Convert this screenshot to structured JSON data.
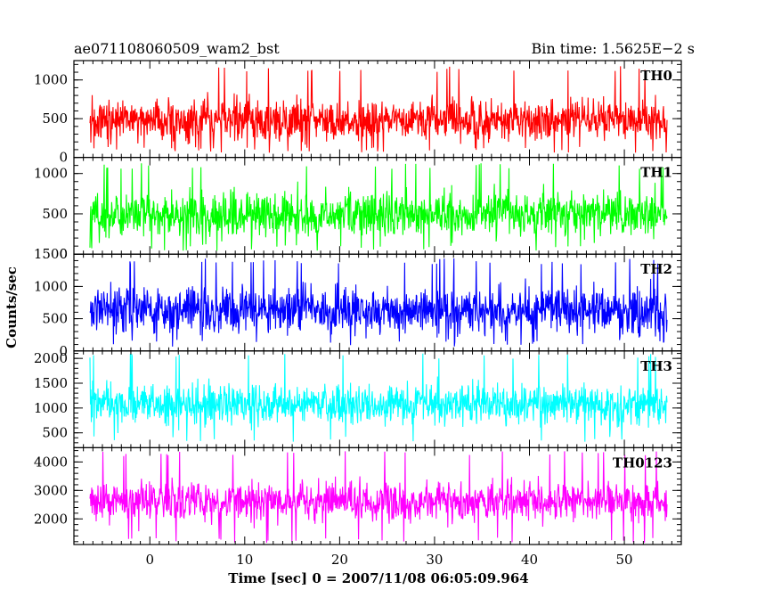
{
  "chart_data": {
    "type": "line",
    "title_left": "ae071108060509_wam2_bst",
    "title_right": "Bin time: 1.5625E−2 s",
    "xlabel": "Time [sec] 0 = 2007/11/08 06:05:09.964",
    "ylabel": "Counts/sec",
    "xlim": [
      -8,
      56
    ],
    "x_ticks": [
      0,
      10,
      20,
      30,
      40,
      50
    ],
    "grid": false,
    "panels": [
      {
        "name": "TH0",
        "color": "#ff0000",
        "ylim": [
          0,
          1250
        ],
        "y_ticks": [
          0,
          500,
          1000
        ],
        "mean": 480,
        "spread": 190,
        "lo": 60,
        "hi": 1180
      },
      {
        "name": "TH1",
        "color": "#00ff00",
        "ylim": [
          0,
          1200
        ],
        "y_ticks": [
          0,
          500,
          1000
        ],
        "mean": 490,
        "spread": 190,
        "lo": 40,
        "hi": 1130
      },
      {
        "name": "TH2",
        "color": "#0000ff",
        "ylim": [
          0,
          1500
        ],
        "y_ticks": [
          0,
          500,
          1000,
          1500
        ],
        "mean": 630,
        "spread": 240,
        "lo": 60,
        "hi": 1440
      },
      {
        "name": "TH3",
        "color": "#00ffff",
        "ylim": [
          200,
          2150
        ],
        "y_ticks": [
          500,
          1000,
          1500,
          2000
        ],
        "mean": 1080,
        "spread": 280,
        "lo": 320,
        "hi": 2100
      },
      {
        "name": "TH0123",
        "color": "#ff00ff",
        "ylim": [
          1100,
          4500
        ],
        "y_ticks": [
          2000,
          3000,
          4000
        ],
        "mean": 2620,
        "spread": 480,
        "lo": 1150,
        "hi": 4380
      }
    ]
  }
}
